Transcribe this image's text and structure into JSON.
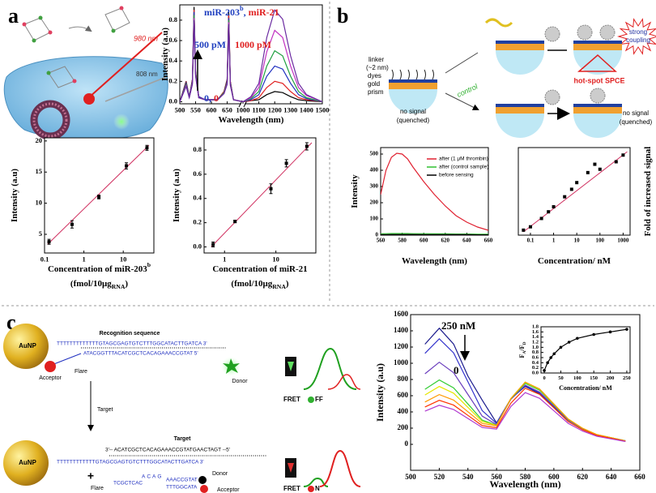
{
  "panels": [
    "a",
    "b",
    "c"
  ],
  "diagram_a": {
    "laser_980": "980 nm",
    "laser_808": "808 nm"
  },
  "diagram_b": {
    "linker": "linker",
    "linker_size": "(~2 nm)",
    "dyes": "dyes",
    "gold": "gold",
    "prism": "prism",
    "no_signal_1": "no signal",
    "quenched_1": "(quenched)",
    "control": "control",
    "strong": "strong",
    "coupling": "coupling",
    "hot_spot": "hot-spot SPCE",
    "no_signal_2": "no signal",
    "quenched_2": "(quenched)"
  },
  "diagram_c": {
    "aunp_1": "AuNP",
    "recognition": "Recognition sequence",
    "strand_top": "TTTTTTTTTTTTTGTAGCGAGTGTCTTTGGCATACTTGATCA 3'",
    "flare_strand": "ATACGGTTTACATCGCTCACAGAAACCGTAT 5'",
    "acceptor_1": "Acceptor",
    "flare_1": "Flare",
    "donor_1": "Donor",
    "target_arrow": "Target",
    "fret_1": "FRET",
    "off": "FF",
    "target_label": "Target",
    "target_strand": "3'-- ACATCGCTCACAGAAACCGTATGAACTAGT --5'",
    "aunp_2": "AuNP",
    "strand_bottom": "TTTTTTTTTTTTGTAGCGAGTGTCTTTGGCATACTTGATCA 3'",
    "plus": "+",
    "flare_2": "Flare",
    "loop_left": "TCGCTCAC",
    "loop_top": "ACAG",
    "stem_top": "AAACCGTAT",
    "stem_bottom": "TTTGGCATA",
    "donor_2": "Donor",
    "acceptor_2": "Acceptor",
    "fret_2": "FRET",
    "on": "N"
  },
  "chart_data": [
    {
      "type": "line",
      "axis_break": [
        700,
        1000
      ],
      "x": [
        500,
        520,
        530,
        540,
        545,
        550,
        560,
        580,
        620,
        640,
        650,
        655,
        660,
        670,
        700,
        1000,
        1050,
        1100,
        1150,
        1200,
        1250,
        1300,
        1350,
        1400,
        1500
      ],
      "series": [
        {
          "color": "#000000",
          "values": [
            0,
            0.2,
            0.05,
            0.22,
            0.93,
            0.3,
            0.05,
            0.02,
            0.02,
            0.1,
            0.22,
            0.88,
            0.2,
            0.02,
            0,
            0,
            0.01,
            0.02,
            0.07,
            0.1,
            0.09,
            0.05,
            0.02,
            0.01,
            0
          ]
        },
        {
          "color": "#e02020",
          "values": [
            0,
            0.19,
            0.05,
            0.21,
            0.9,
            0.29,
            0.05,
            0.02,
            0.02,
            0.1,
            0.21,
            0.85,
            0.2,
            0.02,
            0,
            0,
            0.01,
            0.04,
            0.14,
            0.2,
            0.18,
            0.1,
            0.04,
            0.02,
            0
          ]
        },
        {
          "color": "#2030c0",
          "values": [
            0,
            0.18,
            0.05,
            0.2,
            0.88,
            0.28,
            0.05,
            0.02,
            0.02,
            0.09,
            0.2,
            0.82,
            0.19,
            0.02,
            0,
            0,
            0.02,
            0.07,
            0.25,
            0.35,
            0.32,
            0.18,
            0.07,
            0.03,
            0
          ]
        },
        {
          "color": "#20a040",
          "values": [
            0,
            0.17,
            0.04,
            0.19,
            0.85,
            0.27,
            0.04,
            0.02,
            0.02,
            0.09,
            0.19,
            0.8,
            0.18,
            0.02,
            0,
            0,
            0.03,
            0.1,
            0.35,
            0.5,
            0.45,
            0.25,
            0.1,
            0.04,
            0
          ]
        },
        {
          "color": "#c030c0",
          "values": [
            0,
            0.16,
            0.04,
            0.18,
            0.82,
            0.26,
            0.04,
            0.02,
            0.02,
            0.08,
            0.18,
            0.78,
            0.17,
            0.02,
            0,
            0,
            0.04,
            0.14,
            0.49,
            0.7,
            0.63,
            0.35,
            0.14,
            0.06,
            0
          ]
        },
        {
          "color": "#6a2aa0",
          "values": [
            0,
            0.15,
            0.04,
            0.17,
            0.8,
            0.25,
            0.04,
            0.02,
            0.02,
            0.08,
            0.17,
            0.76,
            0.16,
            0.02,
            0,
            0,
            0.05,
            0.18,
            0.63,
            0.9,
            0.81,
            0.45,
            0.18,
            0.07,
            0
          ]
        }
      ],
      "xlim": [
        500,
        1500
      ],
      "xticks": [
        500,
        550,
        600,
        650,
        1000,
        1100,
        1200,
        1300,
        1400,
        1500
      ],
      "ylim": [
        -0.02,
        0.95
      ],
      "yticks": [
        {
          "value": 0,
          "label": "0.0"
        },
        0.2,
        0.4,
        0.6,
        0.8
      ],
      "xlabel": [
        [
          "Wavelength (nm)"
        ]
      ],
      "ylabel": [
        [
          "Intensity (a.u)"
        ]
      ],
      "annotations": [
        [
          {
            "text": "miR-203",
            "color": "#1f3fbf"
          },
          {
            "text": "b",
            "color": "#1f3fbf",
            "pos": "sup"
          },
          {
            "text": ", ",
            "color": "#1f3fbf"
          },
          {
            "text": "miR-21",
            "color": "#e02020"
          }
        ],
        [
          {
            "text": "500 pM",
            "color": "#1f3fbf"
          }
        ],
        [
          {
            "text": "1000 pM",
            "color": "#e02020"
          }
        ],
        [
          {
            "text": "0",
            "color": "#1f3fbf"
          },
          {
            "text": ", ",
            "color": "#1f3fbf"
          },
          {
            "text": "0",
            "color": "#e02020"
          }
        ]
      ]
    },
    {
      "type": "scatter",
      "xscale": "log",
      "marker": "square",
      "color": "#000000",
      "x": [
        0.13,
        0.5,
        2.4,
        12,
        40
      ],
      "values": [
        3.8,
        6.6,
        11.0,
        16.0,
        18.9
      ],
      "errors": [
        0.4,
        0.6,
        0.3,
        0.5,
        0.4
      ],
      "trend": {
        "color": "#d03060",
        "x": [
          0.12,
          45
        ],
        "values": [
          3.4,
          19.3
        ]
      },
      "xlim": [
        0.1,
        60
      ],
      "xticks": [
        0.1,
        1,
        10
      ],
      "ylim": [
        2,
        20.5
      ],
      "yticks": [
        5,
        10,
        15,
        20
      ],
      "xlabel": [
        [
          "Concentration of miR-203",
          {
            "text": "b",
            "pos": "sup"
          }
        ],
        [
          "(fmol/10μg",
          {
            "text": "RNA",
            "pos": "sub"
          },
          ")"
        ]
      ],
      "ylabel": [
        [
          "Intensity (a.u)"
        ]
      ]
    },
    {
      "type": "scatter",
      "xscale": "log",
      "marker": "square",
      "color": "#000000",
      "x": [
        0.6,
        1.6,
        8,
        16,
        40
      ],
      "values": [
        0.02,
        0.21,
        0.48,
        0.69,
        0.83
      ],
      "errors": [
        0.02,
        0.01,
        0.04,
        0.03,
        0.03
      ],
      "trend": {
        "color": "#d03060",
        "x": [
          0.55,
          50
        ],
        "values": [
          0.0,
          0.86
        ]
      },
      "xlim": [
        0.4,
        60
      ],
      "xticks": [
        1,
        10
      ],
      "ylim": [
        -0.05,
        0.9
      ],
      "yticks": [
        {
          "value": 0,
          "label": "0.0"
        },
        0.2,
        0.4,
        0.6,
        0.8
      ],
      "xlabel": [
        [
          "Concentration of miR-21"
        ],
        [
          "(fmol/10μg",
          {
            "text": "RNA",
            "pos": "sub"
          },
          ")"
        ]
      ],
      "ylabel": [
        [
          "Intensity (a.u)"
        ]
      ]
    },
    {
      "type": "line",
      "legend": "upper right",
      "x": [
        560,
        565,
        570,
        575,
        580,
        585,
        590,
        600,
        610,
        620,
        630,
        640,
        650,
        660
      ],
      "series": [
        {
          "name": "after (1 μM thrombin)",
          "color": "#e02030",
          "values": [
            250,
            400,
            480,
            505,
            500,
            470,
            420,
            330,
            250,
            180,
            120,
            80,
            50,
            30
          ]
        },
        {
          "name": "after (control sample)",
          "color": "#30c030",
          "values": [
            8,
            9,
            10,
            10,
            10,
            10,
            9,
            9,
            8,
            8,
            7,
            7,
            6,
            6
          ]
        },
        {
          "name": "before sensing",
          "color": "#000000",
          "values": [
            3,
            3,
            4,
            4,
            4,
            4,
            4,
            3,
            3,
            3,
            3,
            3,
            2,
            2
          ]
        }
      ],
      "xlim": [
        560,
        660
      ],
      "xticks": [
        560,
        580,
        600,
        620,
        640,
        660
      ],
      "ylim": [
        0,
        540
      ],
      "yticks": [
        0,
        100,
        200,
        300,
        400,
        500
      ],
      "xlabel": [
        [
          "Wavelength (nm)"
        ]
      ],
      "ylabel": [
        [
          "Intensity"
        ]
      ]
    },
    {
      "type": "scatter",
      "xscale": "log",
      "marker": "square",
      "color": "#000000",
      "ylabel_side": "right",
      "x": [
        0.05,
        0.1,
        0.3,
        0.6,
        1,
        3,
        6,
        10,
        30,
        60,
        100,
        500,
        1000
      ],
      "values": [
        0.6,
        1.0,
        2.0,
        2.8,
        3.4,
        4.6,
        5.5,
        6.3,
        7.5,
        8.5,
        7.9,
        8.8,
        9.6
      ],
      "trend": {
        "color": "#d03060",
        "x": [
          0.05,
          1500
        ],
        "values": [
          0.4,
          10
        ]
      },
      "xlim": [
        0.03,
        2000
      ],
      "xticks": [
        0.1,
        1,
        10,
        100,
        1000
      ],
      "ylim": [
        0,
        10.5
      ],
      "xlabel": [
        [
          "Concentration/ nM"
        ]
      ],
      "ylabel": [
        [
          "Fold of increased signal"
        ]
      ]
    },
    {
      "type": "line",
      "x": [
        510,
        520,
        530,
        540,
        550,
        560,
        570,
        580,
        590,
        600,
        610,
        620,
        630,
        650
      ],
      "series": [
        {
          "color": "#1a1a8c",
          "values": [
            1235,
            1432,
            1237,
            841,
            546,
            264,
            562,
            714,
            625,
            461,
            297,
            193,
            118,
            44
          ]
        },
        {
          "color": "#3333cc",
          "values": [
            1122,
            1302,
            1128,
            771,
            416,
            258,
            563,
            723,
            635,
            468,
            300,
            194,
            119,
            44
          ]
        },
        {
          "color": "#6a3dbd",
          "values": [
            870,
            1013,
            883,
            615,
            348,
            243,
            555,
            730,
            645,
            473,
            300,
            193,
            118,
            43
          ]
        },
        {
          "color": "#33cc33",
          "values": [
            679,
            794,
            697,
            498,
            299,
            235,
            561,
            752,
            668,
            488,
            307,
            196,
            120,
            43
          ]
        },
        {
          "color": "#e6e600",
          "values": [
            609,
            714,
            631,
            456,
            282,
            234,
            567,
            766,
            681,
            497,
            312,
            199,
            121,
            43
          ]
        },
        {
          "color": "#ff9900",
          "values": [
            522,
            614,
            546,
            402,
            258,
            228,
            564,
            768,
            684,
            498,
            312,
            198,
            120,
            42
          ]
        },
        {
          "color": "#ff3300",
          "values": [
            461,
            543,
            484,
            357,
            231,
            205,
            508,
            692,
            617,
            450,
            281,
            179,
            109,
            38
          ]
        },
        {
          "color": "#b03ad0",
          "values": [
            409,
            482,
            430,
            319,
            208,
            188,
            467,
            638,
            568,
            414,
            259,
            164,
            99,
            35
          ]
        }
      ],
      "xlim": [
        500,
        660
      ],
      "xticks": [
        500,
        520,
        540,
        560,
        580,
        600,
        620,
        640,
        660
      ],
      "ylim": [
        -320,
        1600
      ],
      "yticks": [
        0,
        200,
        400,
        600,
        800,
        1000,
        1200,
        1400,
        1600
      ],
      "xlabel": [
        [
          "Wavelength (nm)"
        ]
      ],
      "ylabel": [
        [
          "Intensity (a.u)"
        ]
      ],
      "annotations": [
        [
          {
            "text": "250 nM",
            "color": "#000000"
          }
        ],
        [
          {
            "text": "0",
            "color": "#000000"
          }
        ]
      ]
    },
    {
      "type": "line",
      "marker": "circle",
      "x": [
        0,
        10,
        20,
        30,
        50,
        75,
        100,
        150,
        200,
        250
      ],
      "series": [
        {
          "color": "#000000",
          "values": [
            0.1,
            0.4,
            0.6,
            0.75,
            1.0,
            1.2,
            1.35,
            1.5,
            1.6,
            1.7
          ]
        }
      ],
      "xlim": [
        -10,
        260
      ],
      "xticks": [
        0,
        50,
        100,
        150,
        200,
        250
      ],
      "ylim": [
        0,
        1.8
      ],
      "yticks": [
        {
          "value": 0,
          "label": "0.0"
        },
        0.2,
        0.4,
        0.6,
        0.8,
        {
          "value": 1,
          "label": "1.0"
        },
        1.2,
        1.4,
        1.6,
        1.8
      ],
      "xlabel": [
        [
          "Concentration/ nM"
        ]
      ],
      "ylabel": [
        [
          "F",
          {
            "text": "A",
            "pos": "sub"
          },
          "/F",
          {
            "text": "D",
            "pos": "sub"
          }
        ]
      ]
    }
  ]
}
